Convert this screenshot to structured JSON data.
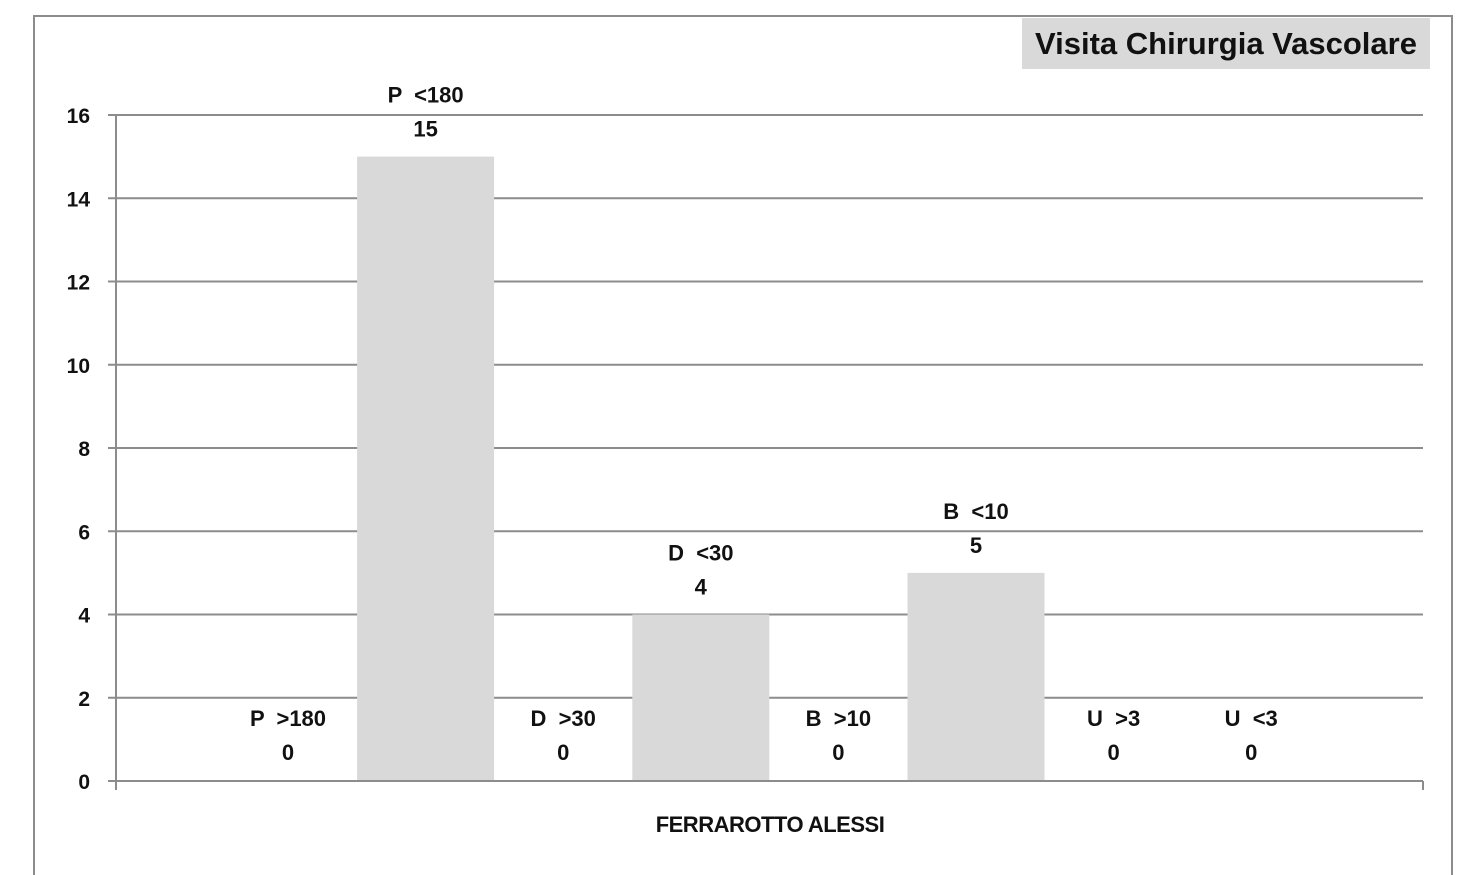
{
  "chart_data": {
    "type": "bar",
    "title": "Visita Chirurgia Vascolare",
    "xlabel": "FERRAROTTO ALESSI",
    "ylabel": "",
    "ylim": [
      0,
      16
    ],
    "yticks": [
      "0",
      "2",
      "4",
      "6",
      "8",
      "10",
      "12",
      "14",
      "16"
    ],
    "grid": true,
    "categories": [
      "FERRAROTTO ALESSI"
    ],
    "series": [
      {
        "name": "P  >180",
        "values": [
          0
        ]
      },
      {
        "name": "P  <180",
        "values": [
          15
        ]
      },
      {
        "name": "D  >30",
        "values": [
          0
        ]
      },
      {
        "name": "D  <30",
        "values": [
          4
        ]
      },
      {
        "name": "B  >10",
        "values": [
          0
        ]
      },
      {
        "name": "B  <10",
        "values": [
          5
        ]
      },
      {
        "name": "U  >3",
        "values": [
          0
        ]
      },
      {
        "name": "U  <3",
        "values": [
          0
        ]
      }
    ],
    "bar_color": "#d9d9d9",
    "grid_color": "#8c8c8c",
    "data_labels": [
      {
        "series": "P  >180",
        "value": "0"
      },
      {
        "series": "P  <180",
        "value": "15"
      },
      {
        "series": "D  >30",
        "value": "0"
      },
      {
        "series": "D  <30",
        "value": "4"
      },
      {
        "series": "B  >10",
        "value": "0"
      },
      {
        "series": "B  <10",
        "value": "5"
      },
      {
        "series": "U  >3",
        "value": "0"
      },
      {
        "series": "U  <3",
        "value": "0"
      }
    ]
  }
}
